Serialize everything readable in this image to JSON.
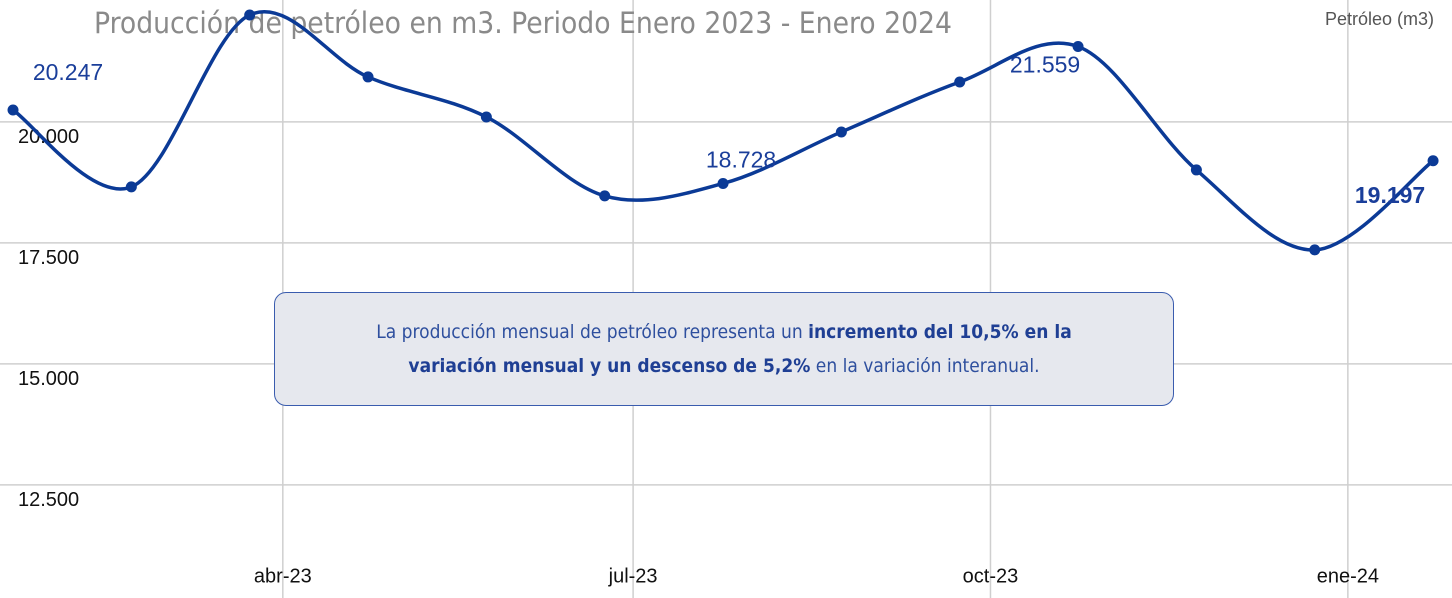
{
  "chart_data": {
    "type": "line",
    "title": "Producción de petróleo en m3. Periodo Enero 2023 - Enero 2024",
    "series": [
      {
        "name": "Petróleo (m3)",
        "color": "#0b3a96",
        "values": [
          20247,
          18657,
          22211,
          20930,
          20103,
          18471,
          18728,
          19793,
          20826,
          21559,
          19008,
          17355,
          19197
        ],
        "value_labels": [
          "20.247",
          null,
          null,
          null,
          null,
          null,
          "18.728",
          null,
          null,
          "21.559",
          null,
          null,
          "19.197"
        ]
      }
    ],
    "ylim": [
      11050,
      22520
    ],
    "yticks": [
      {
        "value": 12500,
        "label": "12.500"
      },
      {
        "value": 15000,
        "label": "15.000"
      },
      {
        "value": 17500,
        "label": "17.500"
      },
      {
        "value": 20000,
        "label": "20.000"
      }
    ],
    "xlim": [
      -0.11,
      12.16
    ],
    "xticks": [
      {
        "value": 2.28,
        "label": "abr-23"
      },
      {
        "value": 5.24,
        "label": "jul-23"
      },
      {
        "value": 8.26,
        "label": "oct-23"
      },
      {
        "value": 11.28,
        "label": "ene-24"
      }
    ],
    "grid": true,
    "legend": "top-right",
    "annotation": [
      {
        "text": "La producción mensual de petróleo representa un ",
        "bold": false
      },
      {
        "text": "incremento del 10,5% en la variación mensual y un descenso de 5,2%",
        "bold": true
      },
      {
        "text": " en la variación interanual.",
        "bold": false
      }
    ]
  }
}
